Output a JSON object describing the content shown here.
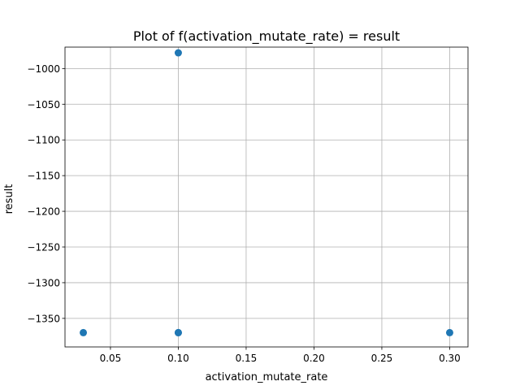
{
  "chart_data": {
    "type": "scatter",
    "title": "Plot of f(activation_mutate_rate) = result",
    "xlabel": "activation_mutate_rate",
    "ylabel": "result",
    "xlim": [
      0.0165,
      0.3135
    ],
    "ylim": [
      -1390,
      -970
    ],
    "x_ticks": [
      0.05,
      0.1,
      0.15,
      0.2,
      0.25,
      0.3
    ],
    "x_tick_labels": [
      "0.05",
      "0.10",
      "0.15",
      "0.20",
      "0.25",
      "0.30"
    ],
    "y_ticks": [
      -1000,
      -1050,
      -1100,
      -1150,
      -1200,
      -1250,
      -1300,
      -1350
    ],
    "y_tick_labels": [
      "−1000",
      "−1050",
      "−1100",
      "−1150",
      "−1200",
      "−1250",
      "−1300",
      "−1350"
    ],
    "grid": true,
    "marker_color": "#1f77b4",
    "points": [
      {
        "x": 0.1,
        "y": -978
      },
      {
        "x": 0.03,
        "y": -1370
      },
      {
        "x": 0.1,
        "y": -1370
      },
      {
        "x": 0.1,
        "y": -1370
      },
      {
        "x": 0.3,
        "y": -1370
      }
    ]
  }
}
